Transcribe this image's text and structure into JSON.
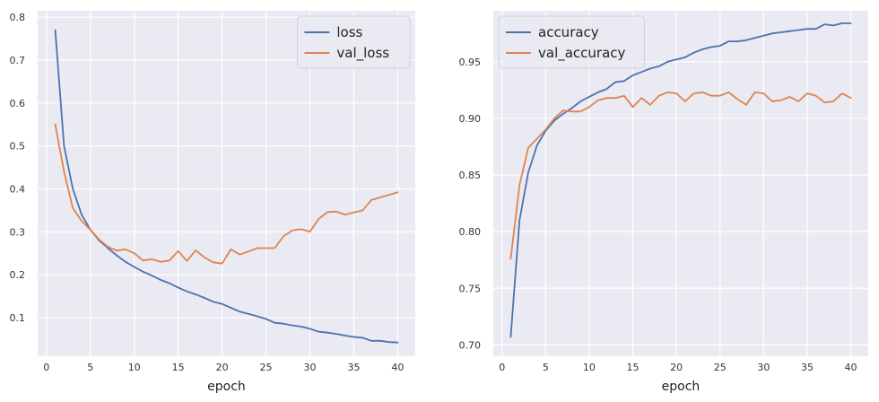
{
  "chart_data": [
    {
      "type": "line",
      "xlabel": "epoch",
      "ylabel": "",
      "xlim": [
        -1,
        42
      ],
      "ylim": [
        0.01,
        0.815
      ],
      "xticks": [
        0,
        5,
        10,
        15,
        20,
        25,
        30,
        35,
        40
      ],
      "yticks": [
        0.1,
        0.2,
        0.3,
        0.4,
        0.5,
        0.6,
        0.7,
        0.8
      ],
      "ytick_labels": [
        "0.1",
        "0.2",
        "0.3",
        "0.4",
        "0.5",
        "0.6",
        "0.7",
        "0.8"
      ],
      "grid": true,
      "legend_position": "top-right",
      "x": [
        1,
        2,
        3,
        4,
        5,
        6,
        7,
        8,
        9,
        10,
        11,
        12,
        13,
        14,
        15,
        16,
        17,
        18,
        19,
        20,
        21,
        22,
        23,
        24,
        25,
        26,
        27,
        28,
        29,
        30,
        31,
        32,
        33,
        34,
        35,
        36,
        37,
        38,
        39,
        40
      ],
      "series": [
        {
          "name": "loss",
          "color": "#4c72b0",
          "values": [
            0.77,
            0.5,
            0.4,
            0.34,
            0.305,
            0.28,
            0.262,
            0.245,
            0.23,
            0.218,
            0.207,
            0.198,
            0.188,
            0.18,
            0.17,
            0.161,
            0.154,
            0.146,
            0.137,
            0.132,
            0.123,
            0.114,
            0.109,
            0.103,
            0.097,
            0.088,
            0.086,
            0.082,
            0.079,
            0.074,
            0.067,
            0.065,
            0.062,
            0.058,
            0.055,
            0.053,
            0.046,
            0.046,
            0.043,
            0.042
          ]
        },
        {
          "name": "val_loss",
          "color": "#dd8452",
          "values": [
            0.55,
            0.44,
            0.355,
            0.325,
            0.305,
            0.282,
            0.265,
            0.256,
            0.259,
            0.25,
            0.233,
            0.236,
            0.23,
            0.233,
            0.255,
            0.232,
            0.257,
            0.24,
            0.229,
            0.226,
            0.259,
            0.247,
            0.254,
            0.262,
            0.262,
            0.262,
            0.29,
            0.303,
            0.306,
            0.3,
            0.33,
            0.346,
            0.347,
            0.34,
            0.345,
            0.35,
            0.374,
            0.38,
            0.386,
            0.392
          ]
        }
      ]
    },
    {
      "type": "line",
      "xlabel": "epoch",
      "ylabel": "",
      "xlim": [
        -1,
        42
      ],
      "ylim": [
        0.69,
        0.995
      ],
      "xticks": [
        0,
        5,
        10,
        15,
        20,
        25,
        30,
        35,
        40
      ],
      "yticks": [
        0.7,
        0.75,
        0.8,
        0.85,
        0.9,
        0.95
      ],
      "ytick_labels": [
        "0.70",
        "0.75",
        "0.80",
        "0.85",
        "0.90",
        "0.95"
      ],
      "grid": true,
      "legend_position": "top-left",
      "x": [
        1,
        2,
        3,
        4,
        5,
        6,
        7,
        8,
        9,
        10,
        11,
        12,
        13,
        14,
        15,
        16,
        17,
        18,
        19,
        20,
        21,
        22,
        23,
        24,
        25,
        26,
        27,
        28,
        29,
        30,
        31,
        32,
        33,
        34,
        35,
        36,
        37,
        38,
        39,
        40
      ],
      "series": [
        {
          "name": "accuracy",
          "color": "#4c72b0",
          "values": [
            0.707,
            0.81,
            0.852,
            0.876,
            0.889,
            0.898,
            0.904,
            0.909,
            0.915,
            0.919,
            0.923,
            0.926,
            0.932,
            0.933,
            0.938,
            0.941,
            0.944,
            0.946,
            0.95,
            0.952,
            0.954,
            0.958,
            0.961,
            0.963,
            0.964,
            0.968,
            0.968,
            0.969,
            0.971,
            0.973,
            0.975,
            0.976,
            0.977,
            0.978,
            0.979,
            0.979,
            0.983,
            0.982,
            0.984,
            0.984
          ]
        },
        {
          "name": "val_accuracy",
          "color": "#dd8452",
          "values": [
            0.776,
            0.841,
            0.874,
            0.882,
            0.89,
            0.9,
            0.907,
            0.906,
            0.906,
            0.91,
            0.916,
            0.918,
            0.918,
            0.92,
            0.91,
            0.918,
            0.912,
            0.92,
            0.923,
            0.922,
            0.915,
            0.922,
            0.923,
            0.92,
            0.92,
            0.923,
            0.917,
            0.912,
            0.923,
            0.922,
            0.915,
            0.916,
            0.919,
            0.915,
            0.922,
            0.92,
            0.914,
            0.915,
            0.922,
            0.918
          ]
        }
      ]
    }
  ]
}
